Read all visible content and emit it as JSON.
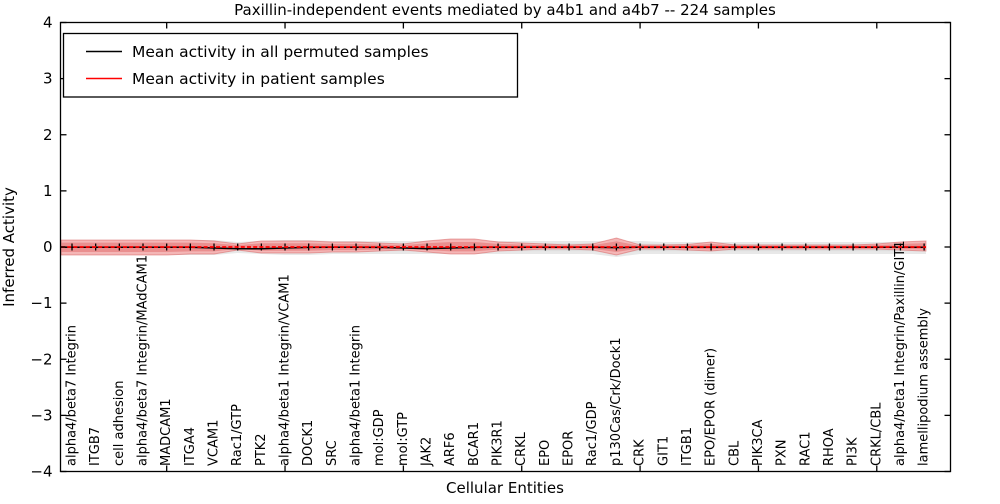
{
  "chart_data": {
    "type": "line",
    "title": "Paxillin-independent events mediated by a4b1 and a4b7 -- 224 samples",
    "xlabel": "Cellular Entities",
    "ylabel": "Inferred Activity",
    "ylim": [
      -4,
      4
    ],
    "grid": false,
    "legend_position": "upper left",
    "yticks": [
      "4",
      "3",
      "2",
      "1",
      "0",
      "−1",
      "−2",
      "−3",
      "−4"
    ],
    "ytick_values": [
      4,
      3,
      2,
      1,
      0,
      -1,
      -2,
      -3,
      -4
    ],
    "categories": [
      "alpha4/beta7 Integrin",
      "ITGB7",
      "cell adhesion",
      "alpha4/beta7 Integrin/MAdCAM1",
      "MADCAM1",
      "ITGA4",
      "VCAM1",
      "Rac1/GTP",
      "PTK2",
      "alpha4/beta1 Integrin/VCAM1",
      "DOCK1",
      "SRC",
      "alpha4/beta1 Integrin",
      "mol:GDP",
      "mol:GTP",
      "JAK2",
      "ARF6",
      "BCAR1",
      "PIK3R1",
      "CRKL",
      "EPO",
      "EPOR",
      "Rac1/GDP",
      "p130Cas/Crk/Dock1",
      "CRK",
      "GIT1",
      "ITGB1",
      "EPO/EPOR (dimer)",
      "CBL",
      "PIK3CA",
      "PXN",
      "RAC1",
      "RHOA",
      "PI3K",
      "CRKL/CBL",
      "alpha4/beta1 Integrin/Paxillin/GIT1",
      "lamellipodium assembly"
    ],
    "series": [
      {
        "name": "Mean activity in all permuted samples",
        "color": "#000000",
        "style": "solid",
        "values": [
          -0.004,
          -0.004,
          -0.004,
          -0.004,
          -0.004,
          -0.004,
          -0.018,
          -0.032,
          -0.032,
          -0.018,
          -0.007,
          -0.004,
          -0.004,
          -0.007,
          -0.018,
          -0.029,
          -0.018,
          -0.007,
          -0.004,
          -0.004,
          -0.004,
          -0.004,
          -0.004,
          -0.011,
          -0.004,
          -0.004,
          -0.004,
          -0.004,
          -0.004,
          -0.004,
          -0.004,
          -0.004,
          -0.004,
          -0.004,
          -0.004,
          -0.004,
          -0.004
        ]
      },
      {
        "name": "Mean activity in patient samples",
        "color": "#ff0000",
        "style": "dashed",
        "values": [
          0,
          0,
          0,
          0,
          0,
          0,
          0,
          0,
          0,
          0,
          0,
          0,
          0,
          0,
          0,
          0,
          0,
          0,
          0,
          0,
          0,
          0,
          0,
          0,
          0,
          0,
          0,
          0,
          0,
          0,
          0,
          0,
          0,
          0,
          0,
          0,
          0
        ]
      }
    ],
    "bands": [
      {
        "name": "permuted-samples-envelope",
        "color": "#e8e8e8",
        "upper": [
          0.125,
          0.125,
          0.125,
          0.125,
          0.125,
          0.125,
          0.125,
          0.089,
          0.107,
          0.125,
          0.125,
          0.107,
          0.107,
          0.107,
          0.107,
          0.107,
          0.107,
          0.107,
          0.107,
          0.107,
          0.107,
          0.107,
          0.107,
          0.107,
          0.107,
          0.089,
          0.089,
          0.089,
          0.089,
          0.089,
          0.089,
          0.089,
          0.089,
          0.089,
          0.089,
          0.089,
          0.089
        ],
        "lower": [
          -0.143,
          -0.143,
          -0.143,
          -0.143,
          -0.143,
          -0.143,
          -0.143,
          -0.107,
          -0.125,
          -0.143,
          -0.143,
          -0.125,
          -0.125,
          -0.125,
          -0.125,
          -0.125,
          -0.125,
          -0.125,
          -0.125,
          -0.125,
          -0.125,
          -0.125,
          -0.125,
          -0.179,
          -0.125,
          -0.125,
          -0.125,
          -0.125,
          -0.125,
          -0.125,
          -0.125,
          -0.125,
          -0.125,
          -0.125,
          -0.125,
          -0.125,
          -0.125
        ]
      },
      {
        "name": "patient-samples-envelope",
        "color": "#f4b6b6",
        "upper": [
          0.125,
          0.125,
          0.125,
          0.125,
          0.125,
          0.125,
          0.107,
          0.054,
          0.107,
          0.107,
          0.107,
          0.089,
          0.089,
          0.071,
          0.054,
          0.107,
          0.143,
          0.143,
          0.089,
          0.071,
          0.054,
          0.036,
          0.054,
          0.161,
          0.036,
          0.036,
          0.045,
          0.089,
          0.036,
          0.036,
          0.036,
          0.036,
          0.036,
          0.036,
          0.054,
          0.089,
          0.107
        ],
        "lower": [
          -0.143,
          -0.143,
          -0.143,
          -0.143,
          -0.143,
          -0.125,
          -0.125,
          -0.054,
          -0.107,
          -0.107,
          -0.107,
          -0.089,
          -0.089,
          -0.071,
          -0.054,
          -0.089,
          -0.125,
          -0.125,
          -0.071,
          -0.054,
          -0.036,
          -0.036,
          -0.054,
          -0.143,
          -0.036,
          -0.036,
          -0.054,
          -0.071,
          -0.036,
          -0.036,
          -0.036,
          -0.036,
          -0.036,
          -0.036,
          -0.036,
          -0.054,
          -0.071
        ]
      }
    ]
  }
}
